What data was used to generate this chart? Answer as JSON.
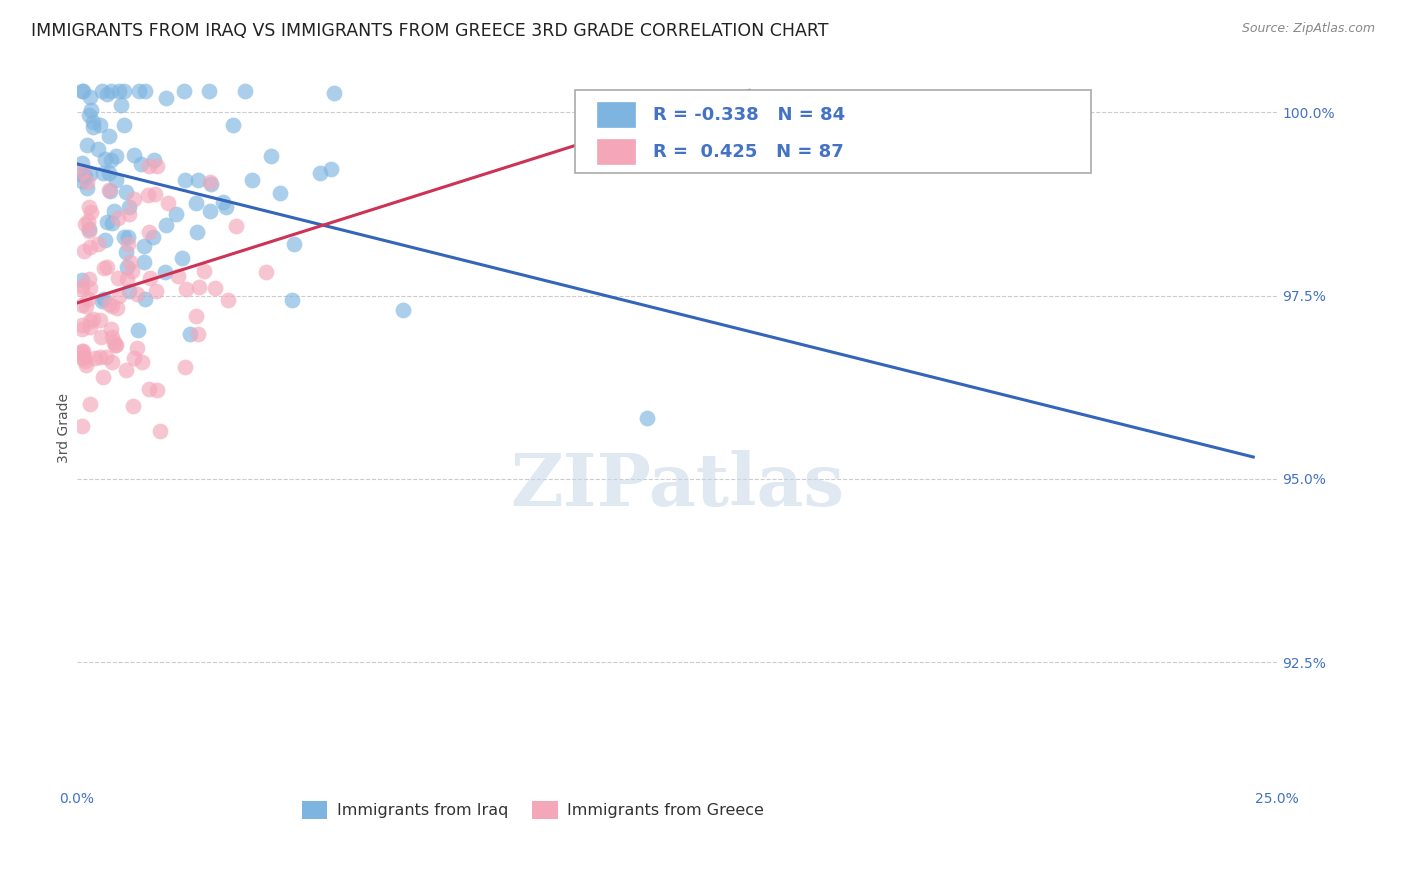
{
  "title": "IMMIGRANTS FROM IRAQ VS IMMIGRANTS FROM GREECE 3RD GRADE CORRELATION CHART",
  "source": "Source: ZipAtlas.com",
  "ylabel": "3rd Grade",
  "ylabel_right_labels": [
    "100.0%",
    "97.5%",
    "95.0%",
    "92.5%"
  ],
  "ylabel_right_values": [
    1.0,
    0.975,
    0.95,
    0.925
  ],
  "xlim": [
    0.0,
    0.25
  ],
  "ylim": [
    0.908,
    1.006
  ],
  "iraq_R": -0.338,
  "iraq_N": 84,
  "greece_R": 0.425,
  "greece_N": 87,
  "iraq_color": "#7eb5e0",
  "greece_color": "#f4a7b9",
  "iraq_line_color": "#3366bb",
  "greece_line_color": "#cc3355",
  "background_color": "#ffffff",
  "grid_color": "#cccccc",
  "title_fontsize": 12.5,
  "axis_label_fontsize": 10,
  "tick_fontsize": 10,
  "legend_fontsize": 13,
  "iraq_trend_x0": 0.0,
  "iraq_trend_y0": 0.993,
  "iraq_trend_x1": 0.245,
  "iraq_trend_y1": 0.953,
  "greece_trend_x0": 0.0,
  "greece_trend_y0": 0.974,
  "greece_trend_x1": 0.14,
  "greece_trend_y1": 1.003
}
